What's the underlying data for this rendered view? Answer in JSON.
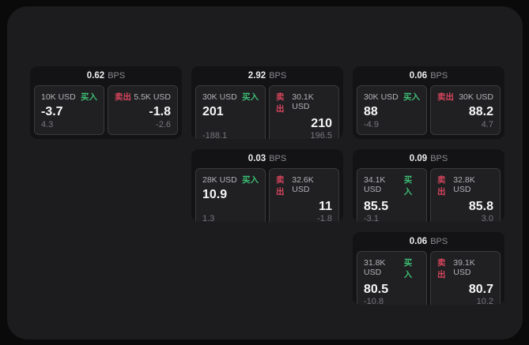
{
  "labels": {
    "bps": "BPS",
    "buy": "买入",
    "sell": "卖出"
  },
  "colors": {
    "buy_green": "#3dbd72",
    "sell_red": "#d6455c",
    "panel_bg": "#1c1c1e",
    "card_bg": "#131315",
    "tile_bg": "#202023"
  },
  "cards": [
    {
      "spread": "0.62",
      "buy": {
        "size": "10K USD",
        "price": "-3.7",
        "delta": "4.3"
      },
      "sell": {
        "size": "5.5K USD",
        "price": "-1.8",
        "delta": "-2.6"
      }
    },
    {
      "spread": "2.92",
      "buy": {
        "size": "30K USD",
        "price": "201",
        "delta": "-188.1"
      },
      "sell": {
        "size": "30.1K USD",
        "price": "210",
        "delta": "196.5"
      }
    },
    {
      "spread": "0.06",
      "buy": {
        "size": "30K USD",
        "price": "88",
        "delta": "-4.9"
      },
      "sell": {
        "size": "30K USD",
        "price": "88.2",
        "delta": "4.7"
      }
    },
    {
      "spread": "0.03",
      "buy": {
        "size": "28K USD",
        "price": "10.9",
        "delta": "1.3"
      },
      "sell": {
        "size": "32.6K USD",
        "price": "11",
        "delta": "-1.8"
      }
    },
    {
      "spread": "0.09",
      "buy": {
        "size": "34.1K USD",
        "price": "85.5",
        "delta": "-3.1"
      },
      "sell": {
        "size": "32.8K USD",
        "price": "85.8",
        "delta": "3.0"
      }
    },
    {
      "spread": "0.06",
      "buy": {
        "size": "31.8K USD",
        "price": "80.5",
        "delta": "-10.8"
      },
      "sell": {
        "size": "39.1K USD",
        "price": "80.7",
        "delta": "10.2"
      }
    }
  ]
}
